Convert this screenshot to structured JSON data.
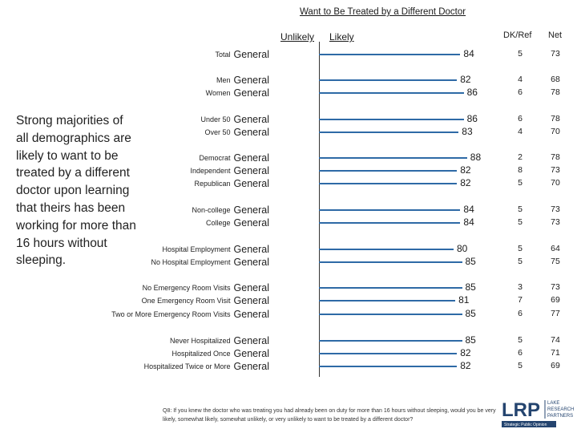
{
  "title": "Want to Be Treated by a Different Doctor",
  "legend": {
    "unlikely": "Unlikely",
    "likely": "Likely"
  },
  "column_headers": {
    "dk_ref": "DK/Ref",
    "net": "Net"
  },
  "side_text": "Strong majorities of all demographics are likely to want to be treated by a different doctor upon learning that theirs has been working for more than 16 hours without sleeping.",
  "footnote": "Q8: If you knew the doctor who was treating you had already been on duty for more than 16 hours without sleeping, would you be very likely, somewhat likely, somewhat unlikely, or very unlikely to want to be treated by a different doctor?",
  "logo": {
    "mark": "LRP",
    "line1": "LAKE",
    "line2": "RESEARCH",
    "line3": "PARTNERS",
    "tagline": "Strategic Public Opinion"
  },
  "colors": {
    "bar": "#2e6aa6",
    "logo_blue": "#24446f",
    "axis": "#333333"
  },
  "chart_data": {
    "type": "bar",
    "orientation": "horizontal",
    "title": "Want to Be Treated by a Different Doctor",
    "series": [
      {
        "name": "Likely",
        "values": [
          84,
          82,
          86,
          86,
          83,
          88,
          82,
          82,
          84,
          84,
          80,
          85,
          85,
          81,
          85,
          85,
          82,
          82
        ]
      }
    ],
    "categories": [
      {
        "label": "Total",
        "suffix": "General",
        "likely": 84,
        "dk": 5,
        "net": 73
      },
      {
        "label": "Men",
        "suffix": "General",
        "likely": 82,
        "dk": 4,
        "net": 68
      },
      {
        "label": "Women",
        "suffix": "General",
        "likely": 86,
        "dk": 6,
        "net": 78
      },
      {
        "label": "Under 50",
        "suffix": "General",
        "likely": 86,
        "dk": 6,
        "net": 78
      },
      {
        "label": "Over 50",
        "suffix": "General",
        "likely": 83,
        "dk": 4,
        "net": 70
      },
      {
        "label": "Democrat",
        "suffix": "General",
        "likely": 88,
        "dk": 2,
        "net": 78
      },
      {
        "label": "Independent",
        "suffix": "General",
        "likely": 82,
        "dk": 8,
        "net": 73
      },
      {
        "label": "Republican",
        "suffix": "General",
        "likely": 82,
        "dk": 5,
        "net": 70
      },
      {
        "label": "Non-college",
        "suffix": "General",
        "likely": 84,
        "dk": 5,
        "net": 73
      },
      {
        "label": "College",
        "suffix": "General",
        "likely": 84,
        "dk": 5,
        "net": 73
      },
      {
        "label": "Hospital Employment",
        "suffix": "General",
        "likely": 80,
        "dk": 5,
        "net": 64
      },
      {
        "label": "No Hospital Employment",
        "suffix": "General",
        "likely": 85,
        "dk": 5,
        "net": 75
      },
      {
        "label": "No Emergency Room Visits",
        "suffix": "General",
        "likely": 85,
        "dk": 3,
        "net": 73
      },
      {
        "label": "One Emergency Room Visit",
        "suffix": "General",
        "likely": 81,
        "dk": 7,
        "net": 69
      },
      {
        "label": "Two or More Emergency Room Visits",
        "suffix": "General",
        "likely": 85,
        "dk": 6,
        "net": 77
      },
      {
        "label": "Never Hospitalized",
        "suffix": "General",
        "likely": 85,
        "dk": 5,
        "net": 74
      },
      {
        "label": "Hospitalized Once",
        "suffix": "General",
        "likely": 82,
        "dk": 6,
        "net": 71
      },
      {
        "label": "Hospitalized Twice or More",
        "suffix": "General",
        "likely": 82,
        "dk": 5,
        "net": 69
      }
    ],
    "xlim": [
      0,
      100
    ],
    "grid": false,
    "legend": "top"
  }
}
